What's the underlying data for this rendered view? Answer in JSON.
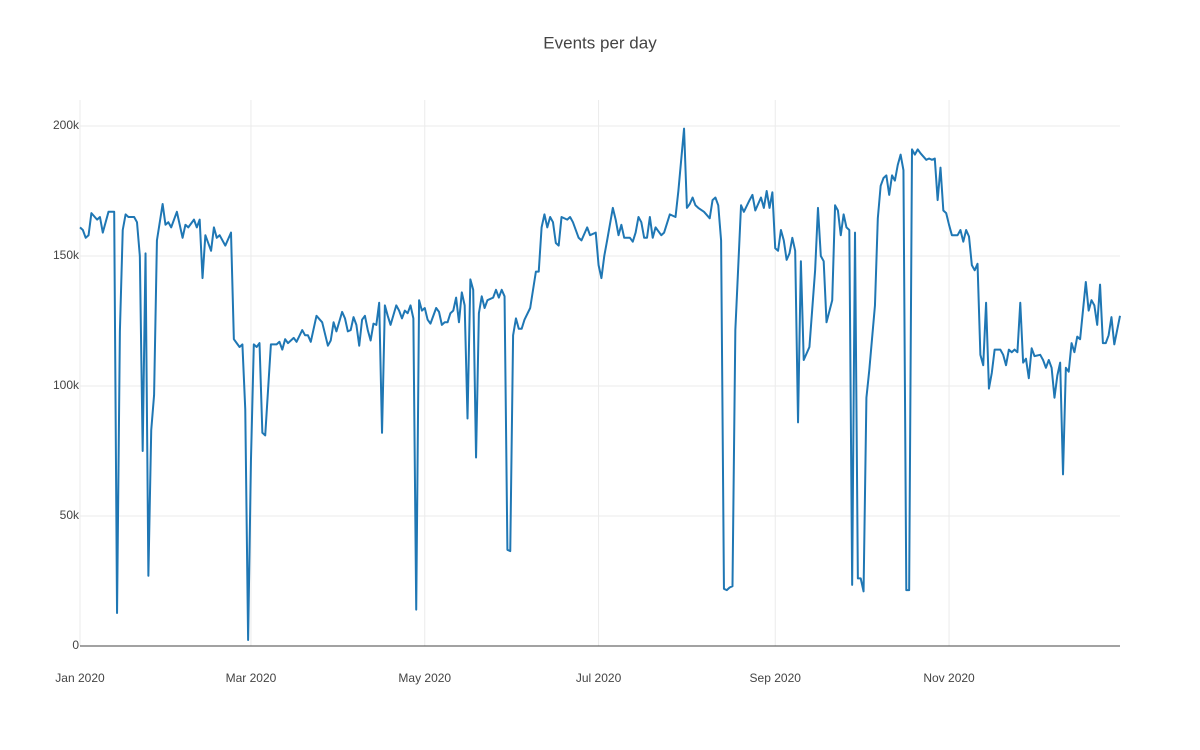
{
  "chart_data": {
    "type": "line",
    "title": "Events per day",
    "color": "#1f77b4",
    "grid": true,
    "xlim": [
      "2020-01-01",
      "2020-12-31"
    ],
    "xticks": [
      {
        "value": "2020-01",
        "label": "Jan 2020"
      },
      {
        "value": "2020-03",
        "label": "Mar 2020"
      },
      {
        "value": "2020-05",
        "label": "May 2020"
      },
      {
        "value": "2020-07",
        "label": "Jul 2020"
      },
      {
        "value": "2020-09",
        "label": "Sep 2020"
      },
      {
        "value": "2020-11",
        "label": "Nov 2020"
      }
    ],
    "ylim": [
      0,
      210000
    ],
    "yticks": [
      0,
      {
        "value": 50000,
        "label": "50k"
      },
      {
        "value": 100000,
        "label": "100k"
      },
      {
        "value": 150000,
        "label": "150k"
      },
      {
        "value": 200000,
        "label": "200k"
      }
    ],
    "x": [
      "2020-01-01",
      "2020-01-02",
      "2020-01-03",
      "2020-01-04",
      "2020-01-05",
      "2020-01-07",
      "2020-01-08",
      "2020-01-09",
      "2020-01-11",
      "2020-01-13",
      "2020-01-14",
      "2020-01-15",
      "2020-01-16",
      "2020-01-17",
      "2020-01-18",
      "2020-01-20",
      "2020-01-21",
      "2020-01-22",
      "2020-01-23",
      "2020-01-24",
      "2020-01-25",
      "2020-01-26",
      "2020-01-27",
      "2020-01-28",
      "2020-01-30",
      "2020-01-31",
      "2020-02-01",
      "2020-02-02",
      "2020-02-04",
      "2020-02-06",
      "2020-02-07",
      "2020-02-08",
      "2020-02-10",
      "2020-02-11",
      "2020-02-12",
      "2020-02-13",
      "2020-02-14",
      "2020-02-16",
      "2020-02-17",
      "2020-02-18",
      "2020-02-19",
      "2020-02-21",
      "2020-02-23",
      "2020-02-24",
      "2020-02-25",
      "2020-02-26",
      "2020-02-27",
      "2020-02-28",
      "2020-02-29",
      "2020-03-01",
      "2020-03-02",
      "2020-03-03",
      "2020-03-04",
      "2020-03-05",
      "2020-03-06",
      "2020-03-08",
      "2020-03-10",
      "2020-03-11",
      "2020-03-12",
      "2020-03-13",
      "2020-03-14",
      "2020-03-16",
      "2020-03-17",
      "2020-03-19",
      "2020-03-20",
      "2020-03-21",
      "2020-03-22",
      "2020-03-24",
      "2020-03-26",
      "2020-03-28",
      "2020-03-29",
      "2020-03-30",
      "2020-03-31",
      "2020-04-02",
      "2020-04-03",
      "2020-04-04",
      "2020-04-05",
      "2020-04-06",
      "2020-04-07",
      "2020-04-08",
      "2020-04-09",
      "2020-04-10",
      "2020-04-11",
      "2020-04-12",
      "2020-04-13",
      "2020-04-14",
      "2020-04-15",
      "2020-04-16",
      "2020-04-17",
      "2020-04-18",
      "2020-04-19",
      "2020-04-21",
      "2020-04-22",
      "2020-04-23",
      "2020-04-24",
      "2020-04-25",
      "2020-04-26",
      "2020-04-27",
      "2020-04-28",
      "2020-04-29",
      "2020-04-30",
      "2020-05-01",
      "2020-05-02",
      "2020-05-03",
      "2020-05-05",
      "2020-05-06",
      "2020-05-07",
      "2020-05-08",
      "2020-05-09",
      "2020-05-10",
      "2020-05-11",
      "2020-05-12",
      "2020-05-13",
      "2020-05-14",
      "2020-05-15",
      "2020-05-16",
      "2020-05-17",
      "2020-05-18",
      "2020-05-19",
      "2020-05-20",
      "2020-05-21",
      "2020-05-22",
      "2020-05-23",
      "2020-05-25",
      "2020-05-26",
      "2020-05-27",
      "2020-05-28",
      "2020-05-29",
      "2020-05-30",
      "2020-05-31",
      "2020-06-01",
      "2020-06-02",
      "2020-06-03",
      "2020-06-04",
      "2020-06-05",
      "2020-06-07",
      "2020-06-09",
      "2020-06-10",
      "2020-06-11",
      "2020-06-12",
      "2020-06-13",
      "2020-06-14",
      "2020-06-15",
      "2020-06-16",
      "2020-06-17",
      "2020-06-18",
      "2020-06-20",
      "2020-06-21",
      "2020-06-22",
      "2020-06-24",
      "2020-06-25",
      "2020-06-27",
      "2020-06-28",
      "2020-06-30",
      "2020-07-01",
      "2020-07-02",
      "2020-07-03",
      "2020-07-04",
      "2020-07-06",
      "2020-07-07",
      "2020-07-08",
      "2020-07-09",
      "2020-07-10",
      "2020-07-12",
      "2020-07-13",
      "2020-07-14",
      "2020-07-15",
      "2020-07-16",
      "2020-07-17",
      "2020-07-18",
      "2020-07-19",
      "2020-07-20",
      "2020-07-21",
      "2020-07-23",
      "2020-07-24",
      "2020-07-26",
      "2020-07-28",
      "2020-07-29",
      "2020-07-31",
      "2020-08-01",
      "2020-08-02",
      "2020-08-03",
      "2020-08-04",
      "2020-08-05",
      "2020-08-07",
      "2020-08-09",
      "2020-08-10",
      "2020-08-11",
      "2020-08-12",
      "2020-08-13",
      "2020-08-14",
      "2020-08-15",
      "2020-08-16",
      "2020-08-17",
      "2020-08-18",
      "2020-08-20",
      "2020-08-21",
      "2020-08-23",
      "2020-08-24",
      "2020-08-25",
      "2020-08-27",
      "2020-08-28",
      "2020-08-29",
      "2020-08-30",
      "2020-08-31",
      "2020-09-01",
      "2020-09-02",
      "2020-09-03",
      "2020-09-04",
      "2020-09-05",
      "2020-09-06",
      "2020-09-07",
      "2020-09-08",
      "2020-09-09",
      "2020-09-10",
      "2020-09-11",
      "2020-09-13",
      "2020-09-15",
      "2020-09-16",
      "2020-09-17",
      "2020-09-18",
      "2020-09-19",
      "2020-09-21",
      "2020-09-22",
      "2020-09-23",
      "2020-09-24",
      "2020-09-25",
      "2020-09-26",
      "2020-09-27",
      "2020-09-28",
      "2020-09-29",
      "2020-09-30",
      "2020-10-01",
      "2020-10-02",
      "2020-10-03",
      "2020-10-04",
      "2020-10-06",
      "2020-10-07",
      "2020-10-08",
      "2020-10-09",
      "2020-10-10",
      "2020-10-11",
      "2020-10-12",
      "2020-10-13",
      "2020-10-14",
      "2020-10-15",
      "2020-10-16",
      "2020-10-17",
      "2020-10-18",
      "2020-10-19",
      "2020-10-20",
      "2020-10-21",
      "2020-10-22",
      "2020-10-24",
      "2020-10-25",
      "2020-10-26",
      "2020-10-27",
      "2020-10-28",
      "2020-10-29",
      "2020-10-30",
      "2020-10-31",
      "2020-11-01",
      "2020-11-02",
      "2020-11-04",
      "2020-11-05",
      "2020-11-06",
      "2020-11-07",
      "2020-11-08",
      "2020-11-09",
      "2020-11-10",
      "2020-11-11",
      "2020-11-12",
      "2020-11-13",
      "2020-11-14",
      "2020-11-15",
      "2020-11-16",
      "2020-11-17",
      "2020-11-19",
      "2020-11-20",
      "2020-11-21",
      "2020-11-22",
      "2020-11-23",
      "2020-11-24",
      "2020-11-25",
      "2020-11-26",
      "2020-11-27",
      "2020-11-28",
      "2020-11-29",
      "2020-11-30",
      "2020-12-01",
      "2020-12-03",
      "2020-12-04",
      "2020-12-05",
      "2020-12-06",
      "2020-12-07",
      "2020-12-08",
      "2020-12-09",
      "2020-12-10",
      "2020-12-11",
      "2020-12-12",
      "2020-12-13",
      "2020-12-14",
      "2020-12-15",
      "2020-12-16",
      "2020-12-17",
      "2020-12-18",
      "2020-12-19",
      "2020-12-20",
      "2020-12-21",
      "2020-12-22",
      "2020-12-23",
      "2020-12-24",
      "2020-12-25",
      "2020-12-26",
      "2020-12-27",
      "2020-12-28",
      "2020-12-29",
      "2020-12-31"
    ],
    "values": [
      161000,
      160000,
      157000,
      158000,
      166500,
      164000,
      165000,
      159000,
      167000,
      167000,
      12700,
      121000,
      160000,
      166000,
      165000,
      165000,
      163000,
      150000,
      75000,
      151000,
      27000,
      83000,
      96500,
      156000,
      170000,
      162000,
      163000,
      161000,
      167000,
      157000,
      162000,
      161000,
      164000,
      161000,
      164000,
      141500,
      158000,
      152000,
      161000,
      157000,
      158000,
      154000,
      159000,
      118000,
      116500,
      115000,
      116000,
      91000,
      2300,
      71500,
      116000,
      115000,
      116500,
      82000,
      81000,
      116000,
      116000,
      117000,
      114000,
      118000,
      116500,
      118500,
      117000,
      121500,
      119500,
      119500,
      117000,
      127000,
      124500,
      115500,
      117500,
      124500,
      121000,
      128500,
      126000,
      121000,
      121500,
      126500,
      123500,
      115500,
      125500,
      127000,
      121500,
      117500,
      124000,
      123500,
      132000,
      82000,
      131000,
      127000,
      123500,
      131000,
      129000,
      126000,
      129000,
      128000,
      131000,
      126000,
      14000,
      133000,
      129000,
      130000,
      125500,
      124000,
      130000,
      128500,
      123500,
      124500,
      124500,
      128000,
      129000,
      134000,
      124500,
      136000,
      131000,
      87500,
      141000,
      137000,
      72500,
      128000,
      134500,
      130000,
      133000,
      134000,
      137000,
      134000,
      137000,
      134500,
      37000,
      36500,
      119500,
      126000,
      122000,
      122000,
      125500,
      130000,
      144000,
      144000,
      161000,
      166000,
      161000,
      165000,
      163000,
      155000,
      154000,
      165000,
      164000,
      165000,
      163000,
      157000,
      156000,
      161000,
      158000,
      159000,
      146500,
      141500,
      150000,
      156000,
      168500,
      164000,
      158000,
      162000,
      157000,
      157000,
      155500,
      159000,
      165000,
      163000,
      157000,
      157000,
      165000,
      157000,
      161000,
      158000,
      159000,
      166000,
      165000,
      175000,
      199000,
      168500,
      170000,
      172500,
      169500,
      168500,
      167000,
      164500,
      171500,
      172500,
      169500,
      156000,
      22000,
      21500,
      22500,
      23000,
      121500,
      169500,
      167000,
      171500,
      173500,
      167500,
      172500,
      168500,
      175000,
      168500,
      174500,
      153000,
      152000,
      160000,
      156000,
      148500,
      151000,
      157000,
      152000,
      86000,
      148000,
      110000,
      115000,
      144500,
      168500,
      150000,
      148000,
      124500,
      133000,
      169500,
      167500,
      158000,
      166000,
      161000,
      160000,
      23500,
      159000,
      26000,
      26000,
      21000,
      95500,
      106000,
      131000,
      164500,
      177000,
      180000,
      181000,
      173500,
      181000,
      179000,
      185000,
      189000,
      183000,
      21500,
      21500,
      191000,
      189000,
      191000,
      189500,
      187000,
      187500,
      187000,
      187500,
      171500,
      184000,
      167500,
      166500,
      162000,
      158000,
      158000,
      160000,
      155500,
      160000,
      157500,
      146500,
      144500,
      147000,
      112000,
      108000,
      132000,
      99000,
      105000,
      114000,
      114000,
      112000,
      108000,
      114000,
      113000,
      114000,
      113000,
      132000,
      109000,
      110500,
      103000,
      114500,
      111500,
      112000,
      110000,
      107000,
      110000,
      107000,
      95500,
      104000,
      109000,
      66000,
      107000,
      105500,
      116500,
      113000,
      119000,
      118000,
      129000,
      140000,
      129000,
      133000,
      131000,
      123500,
      139000,
      116500,
      116500,
      119500,
      126500,
      116000,
      127000
    ]
  }
}
